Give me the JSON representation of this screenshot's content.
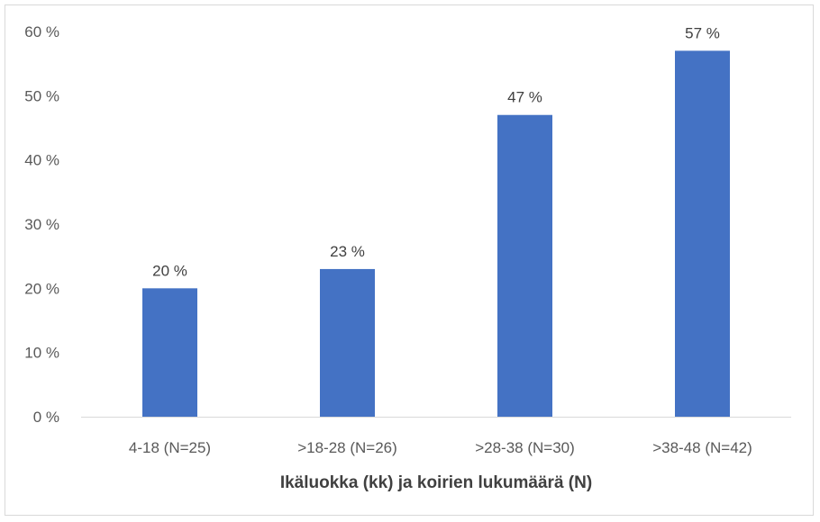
{
  "chart_data": {
    "type": "bar",
    "title": "",
    "xlabel": "Ikäluokka (kk) ja koirien lukumäärä (N)",
    "ylabel": "",
    "categories": [
      "4-18 (N=25)",
      ">18-28 (N=26)",
      ">28-38 (N=30)",
      ">38-48 (N=42)"
    ],
    "values": [
      20,
      23,
      47,
      57
    ],
    "data_labels": [
      "20 %",
      "23 %",
      "47 %",
      "57 %"
    ],
    "ylim": [
      0,
      60
    ],
    "yticks": [
      0,
      10,
      20,
      30,
      40,
      50,
      60
    ],
    "ytick_labels": [
      "0 %",
      "10 %",
      "20 %",
      "30 %",
      "40 %",
      "50 %",
      "60 %"
    ],
    "bar_color": "#4472C4",
    "grid": false,
    "legend": "none"
  }
}
